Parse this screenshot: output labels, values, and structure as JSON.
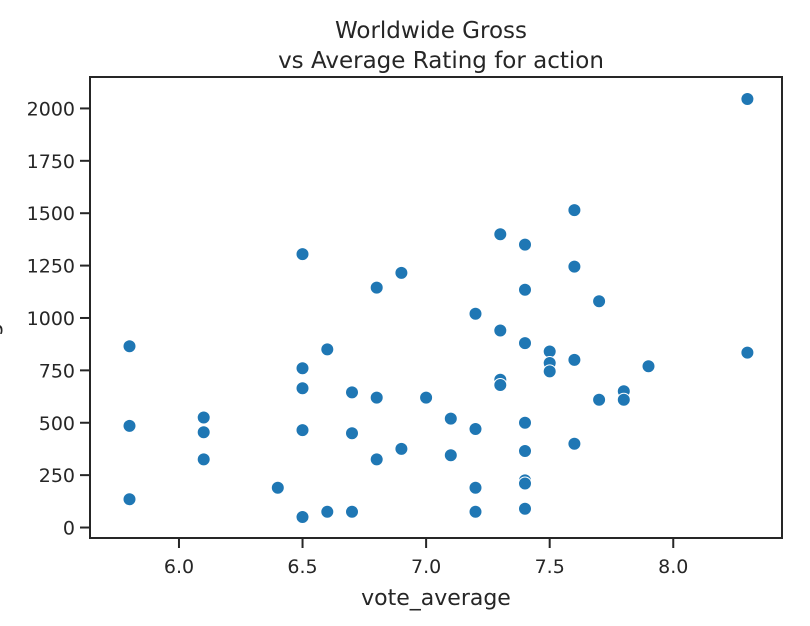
{
  "chart_data": {
    "type": "scatter",
    "title_lines": [
      "Worldwide Gross",
      "vs Average Rating for action"
    ],
    "xlabel": "vote_average",
    "ylabel": "gross",
    "xlim": [
      5.64,
      8.44
    ],
    "ylim": [
      -50,
      2150
    ],
    "xticks": [
      6.0,
      6.5,
      7.0,
      7.5,
      8.0
    ],
    "xtick_labels": [
      "6.0",
      "6.5",
      "7.0",
      "7.5",
      "8.0"
    ],
    "yticks": [
      0,
      250,
      500,
      750,
      1000,
      1250,
      1500,
      1750,
      2000
    ],
    "ytick_labels": [
      "0",
      "250",
      "500",
      "750",
      "1000",
      "1250",
      "1500",
      "1750",
      "2000"
    ],
    "grid": false,
    "marker_color": "#1f77b4",
    "points": [
      {
        "x": 5.8,
        "y": 865
      },
      {
        "x": 5.8,
        "y": 485
      },
      {
        "x": 5.8,
        "y": 135
      },
      {
        "x": 6.1,
        "y": 525
      },
      {
        "x": 6.1,
        "y": 455
      },
      {
        "x": 6.1,
        "y": 325
      },
      {
        "x": 6.4,
        "y": 190
      },
      {
        "x": 6.5,
        "y": 1305
      },
      {
        "x": 6.5,
        "y": 760
      },
      {
        "x": 6.5,
        "y": 665
      },
      {
        "x": 6.5,
        "y": 465
      },
      {
        "x": 6.5,
        "y": 50
      },
      {
        "x": 6.6,
        "y": 850
      },
      {
        "x": 6.6,
        "y": 75
      },
      {
        "x": 6.7,
        "y": 645
      },
      {
        "x": 6.7,
        "y": 450
      },
      {
        "x": 6.7,
        "y": 75
      },
      {
        "x": 6.8,
        "y": 1145
      },
      {
        "x": 6.8,
        "y": 620
      },
      {
        "x": 6.8,
        "y": 325
      },
      {
        "x": 6.9,
        "y": 1215
      },
      {
        "x": 6.9,
        "y": 375
      },
      {
        "x": 7.0,
        "y": 620
      },
      {
        "x": 7.1,
        "y": 520
      },
      {
        "x": 7.1,
        "y": 345
      },
      {
        "x": 7.2,
        "y": 1020
      },
      {
        "x": 7.2,
        "y": 470
      },
      {
        "x": 7.2,
        "y": 190
      },
      {
        "x": 7.2,
        "y": 75
      },
      {
        "x": 7.3,
        "y": 1400
      },
      {
        "x": 7.3,
        "y": 940
      },
      {
        "x": 7.3,
        "y": 705
      },
      {
        "x": 7.3,
        "y": 680
      },
      {
        "x": 7.4,
        "y": 1350
      },
      {
        "x": 7.4,
        "y": 1135
      },
      {
        "x": 7.4,
        "y": 880
      },
      {
        "x": 7.4,
        "y": 500
      },
      {
        "x": 7.4,
        "y": 365
      },
      {
        "x": 7.4,
        "y": 225
      },
      {
        "x": 7.4,
        "y": 210
      },
      {
        "x": 7.4,
        "y": 90
      },
      {
        "x": 7.5,
        "y": 840
      },
      {
        "x": 7.5,
        "y": 785
      },
      {
        "x": 7.5,
        "y": 745
      },
      {
        "x": 7.6,
        "y": 1515
      },
      {
        "x": 7.6,
        "y": 1245
      },
      {
        "x": 7.6,
        "y": 800
      },
      {
        "x": 7.6,
        "y": 400
      },
      {
        "x": 7.7,
        "y": 1080
      },
      {
        "x": 7.7,
        "y": 610
      },
      {
        "x": 7.8,
        "y": 650
      },
      {
        "x": 7.8,
        "y": 610
      },
      {
        "x": 7.9,
        "y": 770
      },
      {
        "x": 8.3,
        "y": 2045
      },
      {
        "x": 8.3,
        "y": 835
      }
    ]
  }
}
